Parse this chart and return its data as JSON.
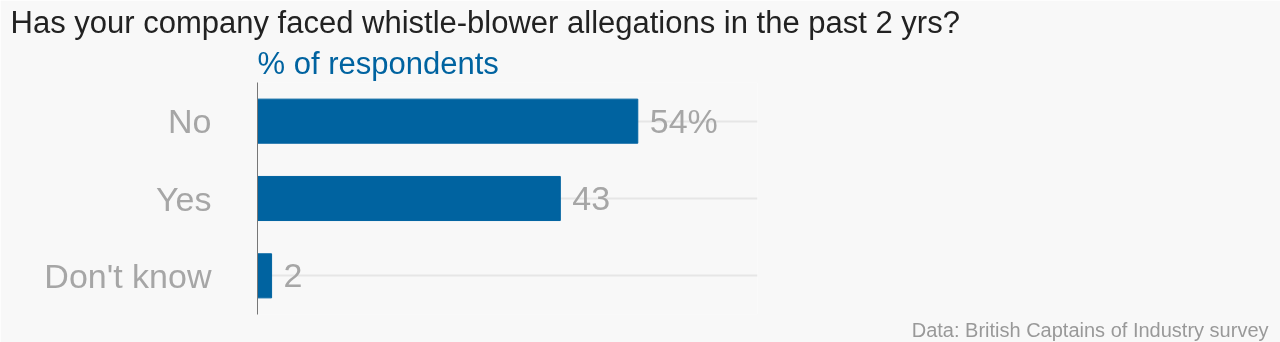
{
  "chart_data": {
    "type": "bar",
    "orientation": "horizontal",
    "title": "Has your company faced whistle-blower allegations in the past 2 yrs?",
    "subtitle": "% of respondents",
    "categories": [
      "No",
      "Yes",
      "Don't know"
    ],
    "values": [
      54,
      43,
      2
    ],
    "value_labels": [
      "54%",
      "43",
      "2"
    ],
    "color": "#0063a0",
    "xlim": [
      0,
      71
    ],
    "tick_labels": "y",
    "grid": "y",
    "annotations": [
      "Data: British Captains of Industry survey"
    ]
  }
}
